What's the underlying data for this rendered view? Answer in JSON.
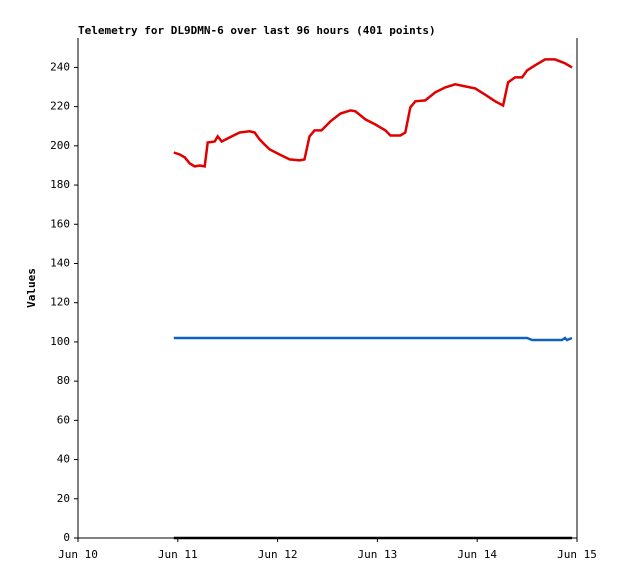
{
  "chart_data": {
    "type": "line",
    "title": "Telemetry for DL9DMN-6 over last 96 hours (401 points)",
    "ylabel": "Values",
    "xlim": [
      10,
      15
    ],
    "xticks": [
      {
        "value": 10,
        "label": "Jun 10"
      },
      {
        "value": 11,
        "label": "Jun 11"
      },
      {
        "value": 12,
        "label": "Jun 12"
      },
      {
        "value": 13,
        "label": "Jun 13"
      },
      {
        "value": 14,
        "label": "Jun 14"
      },
      {
        "value": 15,
        "label": "Jun 15"
      }
    ],
    "ylim": [
      0,
      255
    ],
    "yticks": [
      0,
      20,
      40,
      60,
      80,
      100,
      120,
      140,
      160,
      180,
      200,
      220,
      240
    ],
    "grid": false,
    "series": [
      {
        "color": "#e00000",
        "x": [
          10.96,
          11.02,
          11.07,
          11.12,
          11.17,
          11.22,
          11.27,
          11.3,
          11.37,
          11.4,
          11.44,
          11.52,
          11.62,
          11.72,
          11.77,
          11.82,
          11.87,
          11.92,
          12.02,
          12.12,
          12.22,
          12.27,
          12.32,
          12.37,
          12.44,
          12.53,
          12.63,
          12.73,
          12.78,
          12.88,
          12.98,
          13.08,
          13.13,
          13.23,
          13.28,
          13.33,
          13.38,
          13.48,
          13.58,
          13.68,
          13.78,
          13.88,
          13.98,
          14.08,
          14.18,
          14.26,
          14.31,
          14.38,
          14.45,
          14.5,
          14.58,
          14.68,
          14.78,
          14.88,
          14.95
        ],
        "values": [
          196.6,
          195.6,
          194.1,
          191,
          189.5,
          190,
          189.5,
          201.7,
          202.2,
          204.8,
          202.2,
          204.3,
          206.8,
          207.4,
          206.8,
          203.3,
          200.7,
          198.2,
          195.6,
          193.1,
          192.6,
          193.1,
          204.8,
          207.9,
          207.9,
          212.5,
          216.5,
          218.1,
          217.6,
          213.5,
          210.9,
          207.9,
          205.3,
          205.3,
          206.8,
          219.6,
          222.7,
          223.2,
          227.3,
          229.8,
          231.4,
          230.3,
          229.3,
          226.1,
          222.7,
          220.6,
          232.4,
          234.9,
          234.9,
          238.5,
          241.1,
          244.1,
          244.1,
          242.1,
          240.0
        ]
      },
      {
        "color": "#1060c0",
        "x": [
          10.96,
          11.5,
          12.0,
          12.5,
          13.0,
          13.5,
          14.0,
          14.5,
          14.55,
          14.85,
          14.88,
          14.9,
          14.95
        ],
        "values": [
          102,
          102,
          102,
          102,
          102,
          102,
          102,
          102,
          101,
          101,
          102,
          101,
          102
        ]
      },
      {
        "color": "#000000",
        "x": [
          10.96,
          14.95
        ],
        "values": [
          0,
          0
        ]
      }
    ]
  }
}
